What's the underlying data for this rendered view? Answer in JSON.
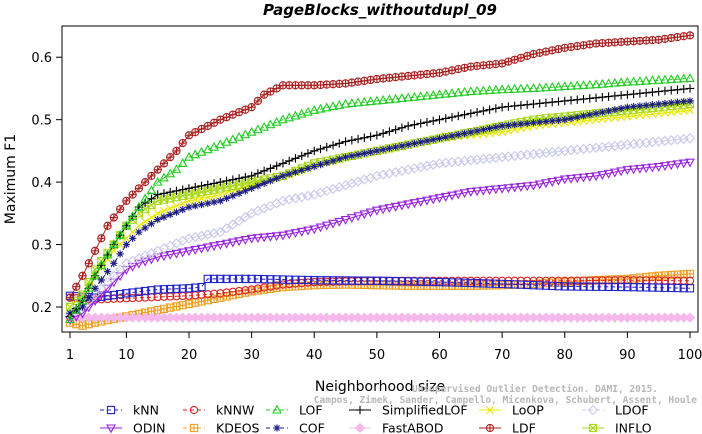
{
  "chart_data": {
    "type": "line",
    "title": "PageBlocks_withoutdupl_09",
    "xlabel": "Neighborhood size",
    "ylabel": "Maximum F1",
    "xlim": [
      1,
      100
    ],
    "ylim": [
      0.16,
      0.65
    ],
    "xticks": [
      1,
      10,
      20,
      30,
      40,
      50,
      60,
      70,
      80,
      90,
      100
    ],
    "yticks": [
      0.2,
      0.3,
      0.4,
      0.5,
      0.6
    ],
    "grid": false,
    "legend_position": "bottom",
    "series": [
      {
        "name": "kNN",
        "color": "#2222cc",
        "marker": "square",
        "dash": "4,3",
        "points": [
          [
            1,
            0.218
          ],
          [
            5,
            0.215
          ],
          [
            10,
            0.222
          ],
          [
            15,
            0.228
          ],
          [
            20,
            0.23
          ],
          [
            22,
            0.232
          ],
          [
            23,
            0.245
          ],
          [
            30,
            0.245
          ],
          [
            40,
            0.243
          ],
          [
            50,
            0.242
          ],
          [
            60,
            0.24
          ],
          [
            70,
            0.237
          ],
          [
            80,
            0.233
          ],
          [
            90,
            0.232
          ],
          [
            100,
            0.23
          ]
        ]
      },
      {
        "name": "kNNW",
        "color": "#dd2222",
        "marker": "circle",
        "dash": "4,3",
        "points": [
          [
            1,
            0.215
          ],
          [
            5,
            0.212
          ],
          [
            10,
            0.214
          ],
          [
            15,
            0.216
          ],
          [
            20,
            0.218
          ],
          [
            25,
            0.222
          ],
          [
            30,
            0.228
          ],
          [
            35,
            0.236
          ],
          [
            40,
            0.24
          ],
          [
            50,
            0.242
          ],
          [
            60,
            0.242
          ],
          [
            70,
            0.242
          ],
          [
            80,
            0.242
          ],
          [
            90,
            0.243
          ],
          [
            100,
            0.242
          ]
        ]
      },
      {
        "name": "LOF",
        "color": "#22cc22",
        "marker": "triangle-up",
        "dash": "4,3",
        "points": [
          [
            1,
            0.18
          ],
          [
            3,
            0.21
          ],
          [
            5,
            0.25
          ],
          [
            8,
            0.3
          ],
          [
            10,
            0.33
          ],
          [
            12,
            0.36
          ],
          [
            15,
            0.4
          ],
          [
            18,
            0.42
          ],
          [
            20,
            0.44
          ],
          [
            25,
            0.46
          ],
          [
            30,
            0.48
          ],
          [
            35,
            0.5
          ],
          [
            40,
            0.515
          ],
          [
            45,
            0.525
          ],
          [
            50,
            0.53
          ],
          [
            55,
            0.535
          ],
          [
            60,
            0.54
          ],
          [
            65,
            0.545
          ],
          [
            70,
            0.548
          ],
          [
            75,
            0.55
          ],
          [
            80,
            0.553
          ],
          [
            85,
            0.556
          ],
          [
            90,
            0.56
          ],
          [
            95,
            0.563
          ],
          [
            100,
            0.566
          ]
        ]
      },
      {
        "name": "SimplifiedLOF",
        "color": "#000000",
        "marker": "plus",
        "dash": "none",
        "points": [
          [
            1,
            0.185
          ],
          [
            3,
            0.21
          ],
          [
            5,
            0.25
          ],
          [
            8,
            0.3
          ],
          [
            10,
            0.33
          ],
          [
            12,
            0.36
          ],
          [
            15,
            0.38
          ],
          [
            20,
            0.39
          ],
          [
            25,
            0.4
          ],
          [
            30,
            0.41
          ],
          [
            35,
            0.43
          ],
          [
            40,
            0.45
          ],
          [
            45,
            0.465
          ],
          [
            50,
            0.475
          ],
          [
            55,
            0.49
          ],
          [
            60,
            0.5
          ],
          [
            65,
            0.51
          ],
          [
            70,
            0.52
          ],
          [
            75,
            0.525
          ],
          [
            80,
            0.53
          ],
          [
            85,
            0.535
          ],
          [
            90,
            0.54
          ],
          [
            95,
            0.545
          ],
          [
            100,
            0.55
          ]
        ]
      },
      {
        "name": "LoOP",
        "color": "#e8e800",
        "marker": "x",
        "dash": "none",
        "points": [
          [
            1,
            0.2
          ],
          [
            3,
            0.22
          ],
          [
            5,
            0.25
          ],
          [
            8,
            0.29
          ],
          [
            10,
            0.31
          ],
          [
            12,
            0.33
          ],
          [
            15,
            0.35
          ],
          [
            20,
            0.37
          ],
          [
            25,
            0.38
          ],
          [
            30,
            0.395
          ],
          [
            35,
            0.41
          ],
          [
            40,
            0.425
          ],
          [
            45,
            0.44
          ],
          [
            50,
            0.45
          ],
          [
            55,
            0.46
          ],
          [
            60,
            0.47
          ],
          [
            65,
            0.475
          ],
          [
            70,
            0.48
          ],
          [
            75,
            0.49
          ],
          [
            80,
            0.495
          ],
          [
            85,
            0.5
          ],
          [
            90,
            0.505
          ],
          [
            95,
            0.51
          ],
          [
            100,
            0.515
          ]
        ]
      },
      {
        "name": "LDOF",
        "color": "#c8c8ee",
        "marker": "diamond",
        "dash": "4,3",
        "points": [
          [
            1,
            0.19
          ],
          [
            3,
            0.2
          ],
          [
            5,
            0.22
          ],
          [
            8,
            0.25
          ],
          [
            10,
            0.27
          ],
          [
            15,
            0.29
          ],
          [
            20,
            0.31
          ],
          [
            25,
            0.32
          ],
          [
            30,
            0.35
          ],
          [
            35,
            0.37
          ],
          [
            40,
            0.38
          ],
          [
            45,
            0.395
          ],
          [
            50,
            0.41
          ],
          [
            55,
            0.42
          ],
          [
            60,
            0.43
          ],
          [
            65,
            0.435
          ],
          [
            70,
            0.44
          ],
          [
            75,
            0.445
          ],
          [
            80,
            0.45
          ],
          [
            85,
            0.455
          ],
          [
            90,
            0.46
          ],
          [
            95,
            0.465
          ],
          [
            100,
            0.47
          ]
        ]
      },
      {
        "name": "ODIN",
        "color": "#9922dd",
        "marker": "triangle-down",
        "dash": "none",
        "points": [
          [
            1,
            0.18
          ],
          [
            3,
            0.19
          ],
          [
            5,
            0.21
          ],
          [
            8,
            0.24
          ],
          [
            10,
            0.26
          ],
          [
            12,
            0.27
          ],
          [
            15,
            0.28
          ],
          [
            20,
            0.29
          ],
          [
            25,
            0.3
          ],
          [
            30,
            0.31
          ],
          [
            35,
            0.315
          ],
          [
            40,
            0.325
          ],
          [
            45,
            0.34
          ],
          [
            50,
            0.355
          ],
          [
            55,
            0.365
          ],
          [
            60,
            0.375
          ],
          [
            65,
            0.385
          ],
          [
            70,
            0.39
          ],
          [
            75,
            0.395
          ],
          [
            80,
            0.405
          ],
          [
            85,
            0.41
          ],
          [
            90,
            0.42
          ],
          [
            95,
            0.425
          ],
          [
            100,
            0.432
          ]
        ]
      },
      {
        "name": "KDEOS",
        "color": "#f0a020",
        "marker": "boxplus",
        "dash": "4,3",
        "points": [
          [
            1,
            0.175
          ],
          [
            3,
            0.17
          ],
          [
            5,
            0.175
          ],
          [
            10,
            0.185
          ],
          [
            15,
            0.195
          ],
          [
            20,
            0.205
          ],
          [
            25,
            0.215
          ],
          [
            30,
            0.225
          ],
          [
            35,
            0.232
          ],
          [
            40,
            0.235
          ],
          [
            45,
            0.236
          ],
          [
            50,
            0.235
          ],
          [
            55,
            0.234
          ],
          [
            60,
            0.234
          ],
          [
            65,
            0.234
          ],
          [
            70,
            0.235
          ],
          [
            75,
            0.237
          ],
          [
            80,
            0.24
          ],
          [
            85,
            0.243
          ],
          [
            90,
            0.245
          ],
          [
            95,
            0.25
          ],
          [
            100,
            0.253
          ]
        ]
      },
      {
        "name": "COF",
        "color": "#1a1a88",
        "marker": "asterisk",
        "dash": "4,3",
        "points": [
          [
            1,
            0.19
          ],
          [
            3,
            0.2
          ],
          [
            5,
            0.23
          ],
          [
            8,
            0.27
          ],
          [
            10,
            0.3
          ],
          [
            12,
            0.32
          ],
          [
            15,
            0.34
          ],
          [
            20,
            0.36
          ],
          [
            25,
            0.37
          ],
          [
            30,
            0.39
          ],
          [
            35,
            0.41
          ],
          [
            40,
            0.425
          ],
          [
            45,
            0.44
          ],
          [
            50,
            0.45
          ],
          [
            55,
            0.46
          ],
          [
            60,
            0.47
          ],
          [
            65,
            0.48
          ],
          [
            70,
            0.49
          ],
          [
            75,
            0.495
          ],
          [
            80,
            0.5
          ],
          [
            85,
            0.51
          ],
          [
            90,
            0.52
          ],
          [
            95,
            0.525
          ],
          [
            100,
            0.53
          ]
        ]
      },
      {
        "name": "FastABOD",
        "color": "#f4b8ec",
        "marker": "diamond-filled",
        "dash": "none",
        "points": [
          [
            1,
            0.183
          ],
          [
            10,
            0.183
          ],
          [
            20,
            0.183
          ],
          [
            30,
            0.183
          ],
          [
            40,
            0.183
          ],
          [
            50,
            0.183
          ],
          [
            60,
            0.183
          ],
          [
            70,
            0.183
          ],
          [
            80,
            0.183
          ],
          [
            90,
            0.183
          ],
          [
            100,
            0.183
          ]
        ]
      },
      {
        "name": "LDF",
        "color": "#aa2020",
        "marker": "circleplus",
        "dash": "none",
        "points": [
          [
            1,
            0.215
          ],
          [
            3,
            0.25
          ],
          [
            5,
            0.29
          ],
          [
            7,
            0.33
          ],
          [
            10,
            0.37
          ],
          [
            13,
            0.4
          ],
          [
            15,
            0.42
          ],
          [
            18,
            0.45
          ],
          [
            20,
            0.475
          ],
          [
            25,
            0.5
          ],
          [
            30,
            0.52
          ],
          [
            32,
            0.54
          ],
          [
            35,
            0.555
          ],
          [
            40,
            0.555
          ],
          [
            45,
            0.558
          ],
          [
            50,
            0.565
          ],
          [
            55,
            0.57
          ],
          [
            60,
            0.575
          ],
          [
            65,
            0.585
          ],
          [
            70,
            0.59
          ],
          [
            75,
            0.605
          ],
          [
            80,
            0.615
          ],
          [
            85,
            0.622
          ],
          [
            90,
            0.625
          ],
          [
            95,
            0.628
          ],
          [
            100,
            0.635
          ]
        ]
      },
      {
        "name": "INFLO",
        "color": "#a8d818",
        "marker": "boxtimes",
        "dash": "none",
        "points": [
          [
            1,
            0.2
          ],
          [
            3,
            0.22
          ],
          [
            5,
            0.26
          ],
          [
            8,
            0.3
          ],
          [
            10,
            0.33
          ],
          [
            12,
            0.35
          ],
          [
            15,
            0.37
          ],
          [
            20,
            0.38
          ],
          [
            25,
            0.39
          ],
          [
            30,
            0.4
          ],
          [
            35,
            0.41
          ],
          [
            40,
            0.43
          ],
          [
            45,
            0.44
          ],
          [
            50,
            0.45
          ],
          [
            55,
            0.46
          ],
          [
            60,
            0.47
          ],
          [
            65,
            0.48
          ],
          [
            70,
            0.49
          ],
          [
            75,
            0.5
          ],
          [
            80,
            0.505
          ],
          [
            85,
            0.51
          ],
          [
            90,
            0.515
          ],
          [
            95,
            0.52
          ],
          [
            100,
            0.525
          ]
        ]
      }
    ]
  },
  "watermark": {
    "line1": "Unsupervised Outlier Detection. DAMI, 2015.",
    "line2": "Campos, Zimek, Sander, Campello, Micenkova, Schubert, Assent, Houle"
  }
}
